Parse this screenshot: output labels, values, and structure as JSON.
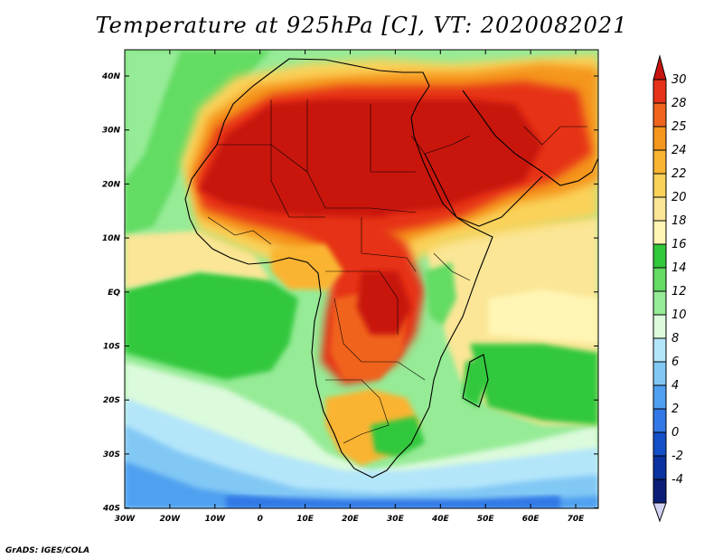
{
  "title": "Temperature at 925hPa [C], VT: 2020082021",
  "credit": "GrADS: IGES/COLA",
  "map": {
    "lon_ticks": [
      "30W",
      "20W",
      "10W",
      "0",
      "10E",
      "20E",
      "30E",
      "40E",
      "50E",
      "60E",
      "70E"
    ],
    "lat_ticks": [
      "40N",
      "30N",
      "20N",
      "10N",
      "EQ",
      "10S",
      "20S",
      "30S",
      "40S"
    ],
    "lon_range": [
      -30,
      75
    ],
    "lat_range": [
      -40,
      44
    ]
  },
  "colorbar": {
    "labels": [
      "30",
      "28",
      "25",
      "24",
      "22",
      "20",
      "18",
      "16",
      "14",
      "12",
      "10",
      "8",
      "6",
      "4",
      "2",
      "0",
      "-2",
      "-4"
    ],
    "colors": [
      "#c8140f",
      "#e63219",
      "#f0641e",
      "#f5961e",
      "#fab432",
      "#fad25a",
      "#fae696",
      "#fff5b4",
      "#32c83c",
      "#64dc64",
      "#96eb96",
      "#dcfadc",
      "#b4e6fa",
      "#82c8f5",
      "#50a0f0",
      "#3278e6",
      "#1450c8",
      "#0a32a0",
      "#0a1e78"
    ],
    "bottom_color": "#d2d2f5",
    "top_color": "#c8140f"
  }
}
